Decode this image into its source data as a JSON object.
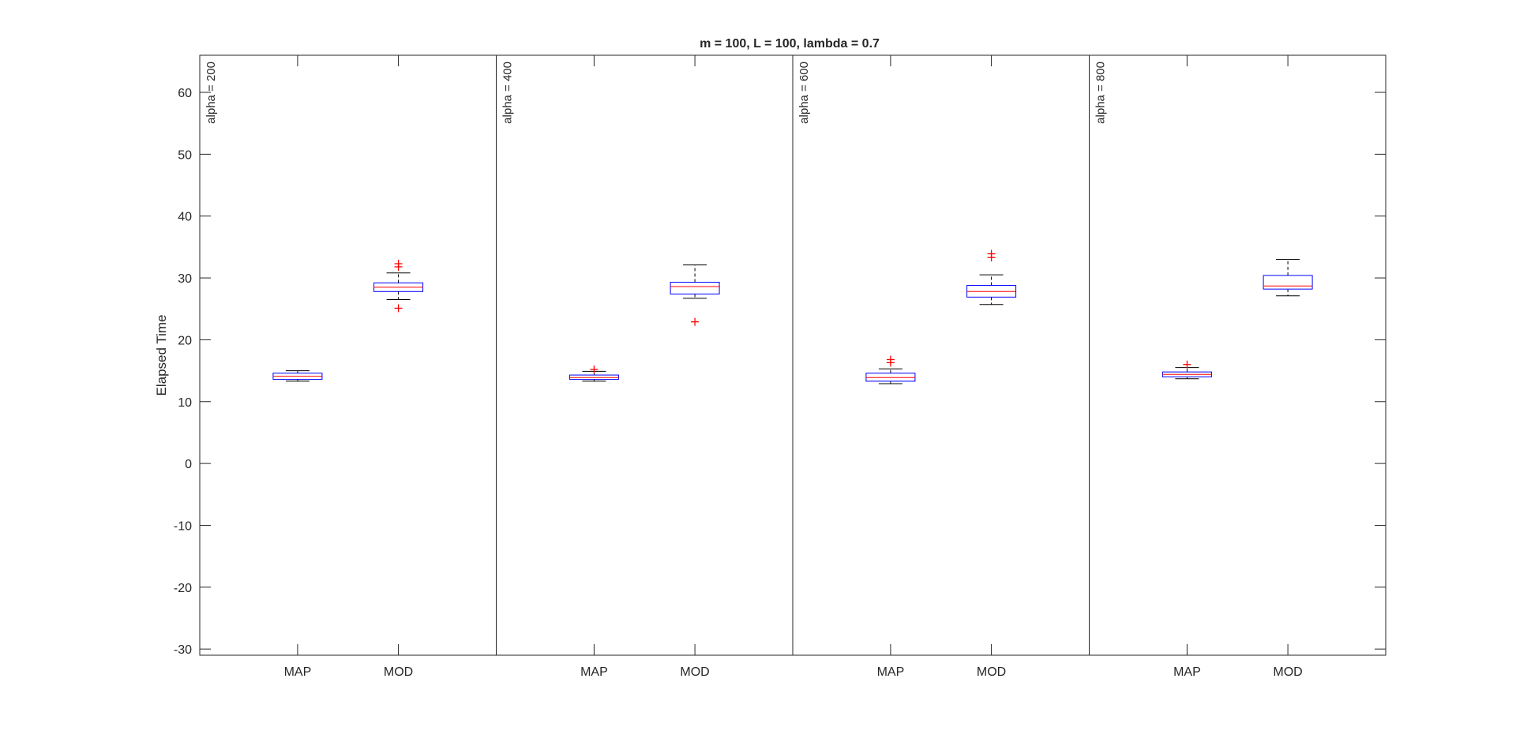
{
  "chart_data": {
    "type": "boxplot",
    "title": "m = 100, L = 100, lambda = 0.7",
    "ylabel": "Elapsed Time",
    "xlabel": "",
    "ylim": [
      -31,
      66
    ],
    "yticks": [
      -30,
      -20,
      -10,
      0,
      10,
      20,
      30,
      40,
      50,
      60
    ],
    "categories": [
      "MAP",
      "MOD"
    ],
    "grid": false,
    "colors": {
      "box": "#0000ff",
      "median": "#ff0000",
      "whisker": "#000000",
      "outlier": "#ff0000"
    },
    "groups": [
      {
        "label": "alpha = 200",
        "boxes": [
          {
            "category": "MAP",
            "whisker_low": 13.3,
            "q1": 13.6,
            "median": 14.1,
            "q3": 14.6,
            "whisker_high": 15.0,
            "outliers": []
          },
          {
            "category": "MOD",
            "whisker_low": 26.5,
            "q1": 27.8,
            "median": 28.5,
            "q3": 29.2,
            "whisker_high": 30.8,
            "outliers": [
              32.3,
              31.8,
              25.1
            ]
          }
        ]
      },
      {
        "label": "alpha = 400",
        "boxes": [
          {
            "category": "MAP",
            "whisker_low": 13.3,
            "q1": 13.6,
            "median": 13.9,
            "q3": 14.3,
            "whisker_high": 14.9,
            "outliers": [
              15.2
            ]
          },
          {
            "category": "MOD",
            "whisker_low": 26.7,
            "q1": 27.4,
            "median": 28.6,
            "q3": 29.3,
            "whisker_high": 32.1,
            "outliers": [
              22.9
            ]
          }
        ]
      },
      {
        "label": "alpha = 600",
        "boxes": [
          {
            "category": "MAP",
            "whisker_low": 12.9,
            "q1": 13.3,
            "median": 13.9,
            "q3": 14.6,
            "whisker_high": 15.3,
            "outliers": [
              16.8,
              16.3
            ]
          },
          {
            "category": "MOD",
            "whisker_low": 25.7,
            "q1": 26.9,
            "median": 27.8,
            "q3": 28.8,
            "whisker_high": 30.5,
            "outliers": [
              33.9,
              33.3
            ]
          }
        ]
      },
      {
        "label": "alpha = 800",
        "boxes": [
          {
            "category": "MAP",
            "whisker_low": 13.7,
            "q1": 14.0,
            "median": 14.4,
            "q3": 14.8,
            "whisker_high": 15.5,
            "outliers": [
              16.0
            ]
          },
          {
            "category": "MOD",
            "whisker_low": 27.1,
            "q1": 28.2,
            "median": 28.7,
            "q3": 30.4,
            "whisker_high": 33.0,
            "outliers": []
          }
        ]
      }
    ]
  }
}
